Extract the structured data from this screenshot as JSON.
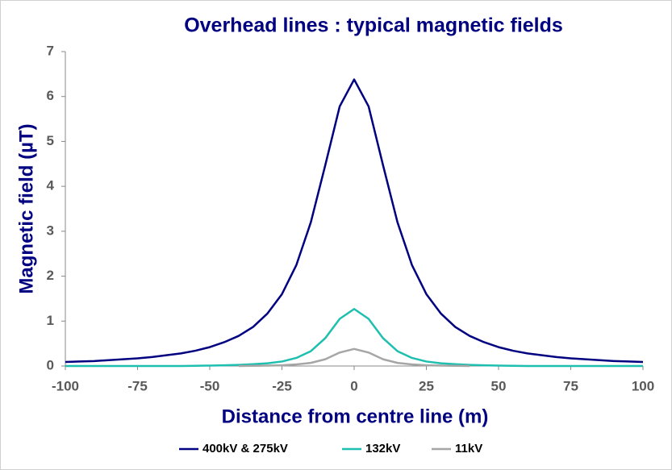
{
  "chart_data": {
    "type": "line",
    "title": "Overhead lines : typical magnetic fields",
    "x_label": "Distance from centre line (m)",
    "y_label": "Magnetic field (µT)",
    "x": [
      -100,
      -95,
      -90,
      -85,
      -80,
      -75,
      -70,
      -65,
      -60,
      -55,
      -50,
      -45,
      -40,
      -35,
      -30,
      -25,
      -20,
      -15,
      -10,
      -5,
      0,
      5,
      10,
      15,
      20,
      25,
      30,
      35,
      40,
      45,
      50,
      55,
      60,
      65,
      70,
      75,
      80,
      85,
      90,
      95,
      100
    ],
    "series": [
      {
        "name": "400kV & 275kV",
        "color": "#000080",
        "values": [
          0.09,
          0.1,
          0.11,
          0.13,
          0.15,
          0.17,
          0.2,
          0.24,
          0.28,
          0.34,
          0.42,
          0.53,
          0.67,
          0.87,
          1.17,
          1.6,
          2.25,
          3.2,
          4.47,
          5.78,
          6.38,
          5.78,
          4.47,
          3.2,
          2.25,
          1.6,
          1.17,
          0.87,
          0.67,
          0.53,
          0.42,
          0.34,
          0.28,
          0.24,
          0.2,
          0.17,
          0.15,
          0.13,
          0.11,
          0.1,
          0.09
        ]
      },
      {
        "name": "132kV",
        "color": "#1FBFB0",
        "values": [
          0,
          0,
          0,
          0,
          0,
          0,
          0,
          0,
          0,
          0.005,
          0.01,
          0.015,
          0.025,
          0.04,
          0.06,
          0.1,
          0.18,
          0.33,
          0.62,
          1.05,
          1.27,
          1.05,
          0.62,
          0.33,
          0.18,
          0.1,
          0.06,
          0.04,
          0.025,
          0.015,
          0.01,
          0.005,
          0,
          0,
          0,
          0,
          0,
          0,
          0,
          0,
          0
        ]
      },
      {
        "name": "11kV",
        "color": "#A6A6A6",
        "values": [
          null,
          null,
          null,
          null,
          null,
          null,
          null,
          null,
          null,
          null,
          null,
          null,
          0,
          0.004,
          0.008,
          0.015,
          0.035,
          0.07,
          0.15,
          0.3,
          0.38,
          0.3,
          0.15,
          0.07,
          0.035,
          0.015,
          0.008,
          0.004,
          0,
          null,
          null,
          null,
          null,
          null,
          null,
          null,
          null,
          null,
          null,
          null,
          null
        ]
      }
    ],
    "xlim": [
      -100,
      100
    ],
    "xticks": [
      -100,
      -75,
      -50,
      -25,
      0,
      25,
      50,
      75,
      100
    ],
    "ylim": [
      0,
      7
    ],
    "yticks": [
      0,
      1,
      2,
      3,
      4,
      5,
      6,
      7
    ],
    "grid": false,
    "legend": "bottom"
  }
}
